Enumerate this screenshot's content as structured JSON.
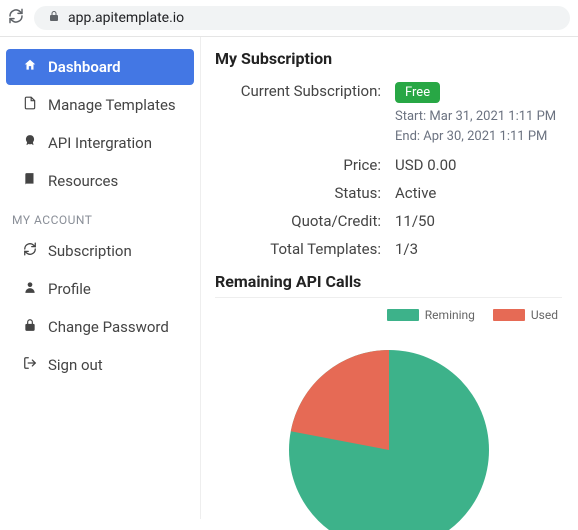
{
  "browser": {
    "url": "app.apitemplate.io"
  },
  "sidebar": {
    "items": [
      {
        "label": "Dashboard"
      },
      {
        "label": "Manage Templates"
      },
      {
        "label": "API Intergration"
      },
      {
        "label": "Resources"
      }
    ],
    "section_label": "MY ACCOUNT",
    "account_items": [
      {
        "label": "Subscription"
      },
      {
        "label": "Profile"
      },
      {
        "label": "Change Password"
      },
      {
        "label": "Sign out"
      }
    ]
  },
  "subscription": {
    "title": "My Subscription",
    "current_label": "Current Subscription:",
    "plan_badge": "Free",
    "start_line": "Start: Mar 31, 2021 1:11 PM",
    "end_line": "End: Apr 30, 2021 1:11 PM",
    "price_label": "Price:",
    "price_value": "USD 0.00",
    "status_label": "Status:",
    "status_value": "Active",
    "quota_label": "Quota/Credit:",
    "quota_value": "11/50",
    "templates_label": "Total Templates:",
    "templates_value": "1/3",
    "api_section_title": "Remaining API Calls"
  },
  "chart": {
    "type": "pie",
    "legend": [
      {
        "label": "Remining",
        "color": "#3db28a"
      },
      {
        "label": "Used",
        "color": "#e66a55"
      }
    ],
    "slices": [
      {
        "name": "Remining",
        "value": 39,
        "color": "#3db28a"
      },
      {
        "name": "Used",
        "value": 11,
        "color": "#e66a55"
      }
    ],
    "radius": 100,
    "background": "#ffffff",
    "used_start_angle_deg": 270,
    "used_sweep_deg": 79.2
  },
  "colors": {
    "sidebar_active_bg": "#4377e4",
    "badge_bg": "#28a745"
  }
}
